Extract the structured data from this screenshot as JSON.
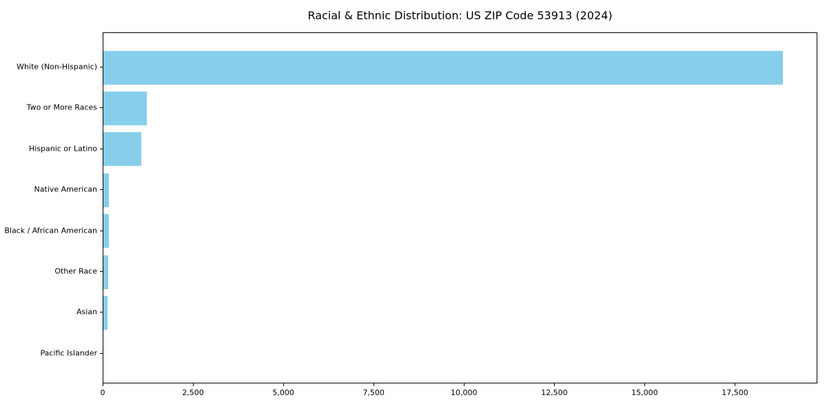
{
  "chart_data": {
    "type": "bar",
    "orientation": "horizontal",
    "title": "Racial & Ethnic Distribution: US ZIP Code 53913 (2024)",
    "categories": [
      "White (Non-Hispanic)",
      "Two or More Races",
      "Hispanic or Latino",
      "Native American",
      "Black / African American",
      "Other Race",
      "Asian",
      "Pacific Islander"
    ],
    "values": [
      18800,
      1200,
      1050,
      155,
      150,
      135,
      115,
      0
    ],
    "xlabel": "",
    "ylabel": "",
    "xlim": [
      0,
      19780
    ],
    "xticks": [
      0,
      2500,
      5000,
      7500,
      10000,
      12500,
      15000,
      17500
    ],
    "xtick_labels": [
      "0",
      "2,500",
      "5,000",
      "7,500",
      "10,000",
      "12,500",
      "15,000",
      "17,500"
    ],
    "grid": false,
    "legend": null,
    "bar_color": "#87CEEB",
    "plot_border_color": "#000000",
    "background_color": "#ffffff"
  }
}
